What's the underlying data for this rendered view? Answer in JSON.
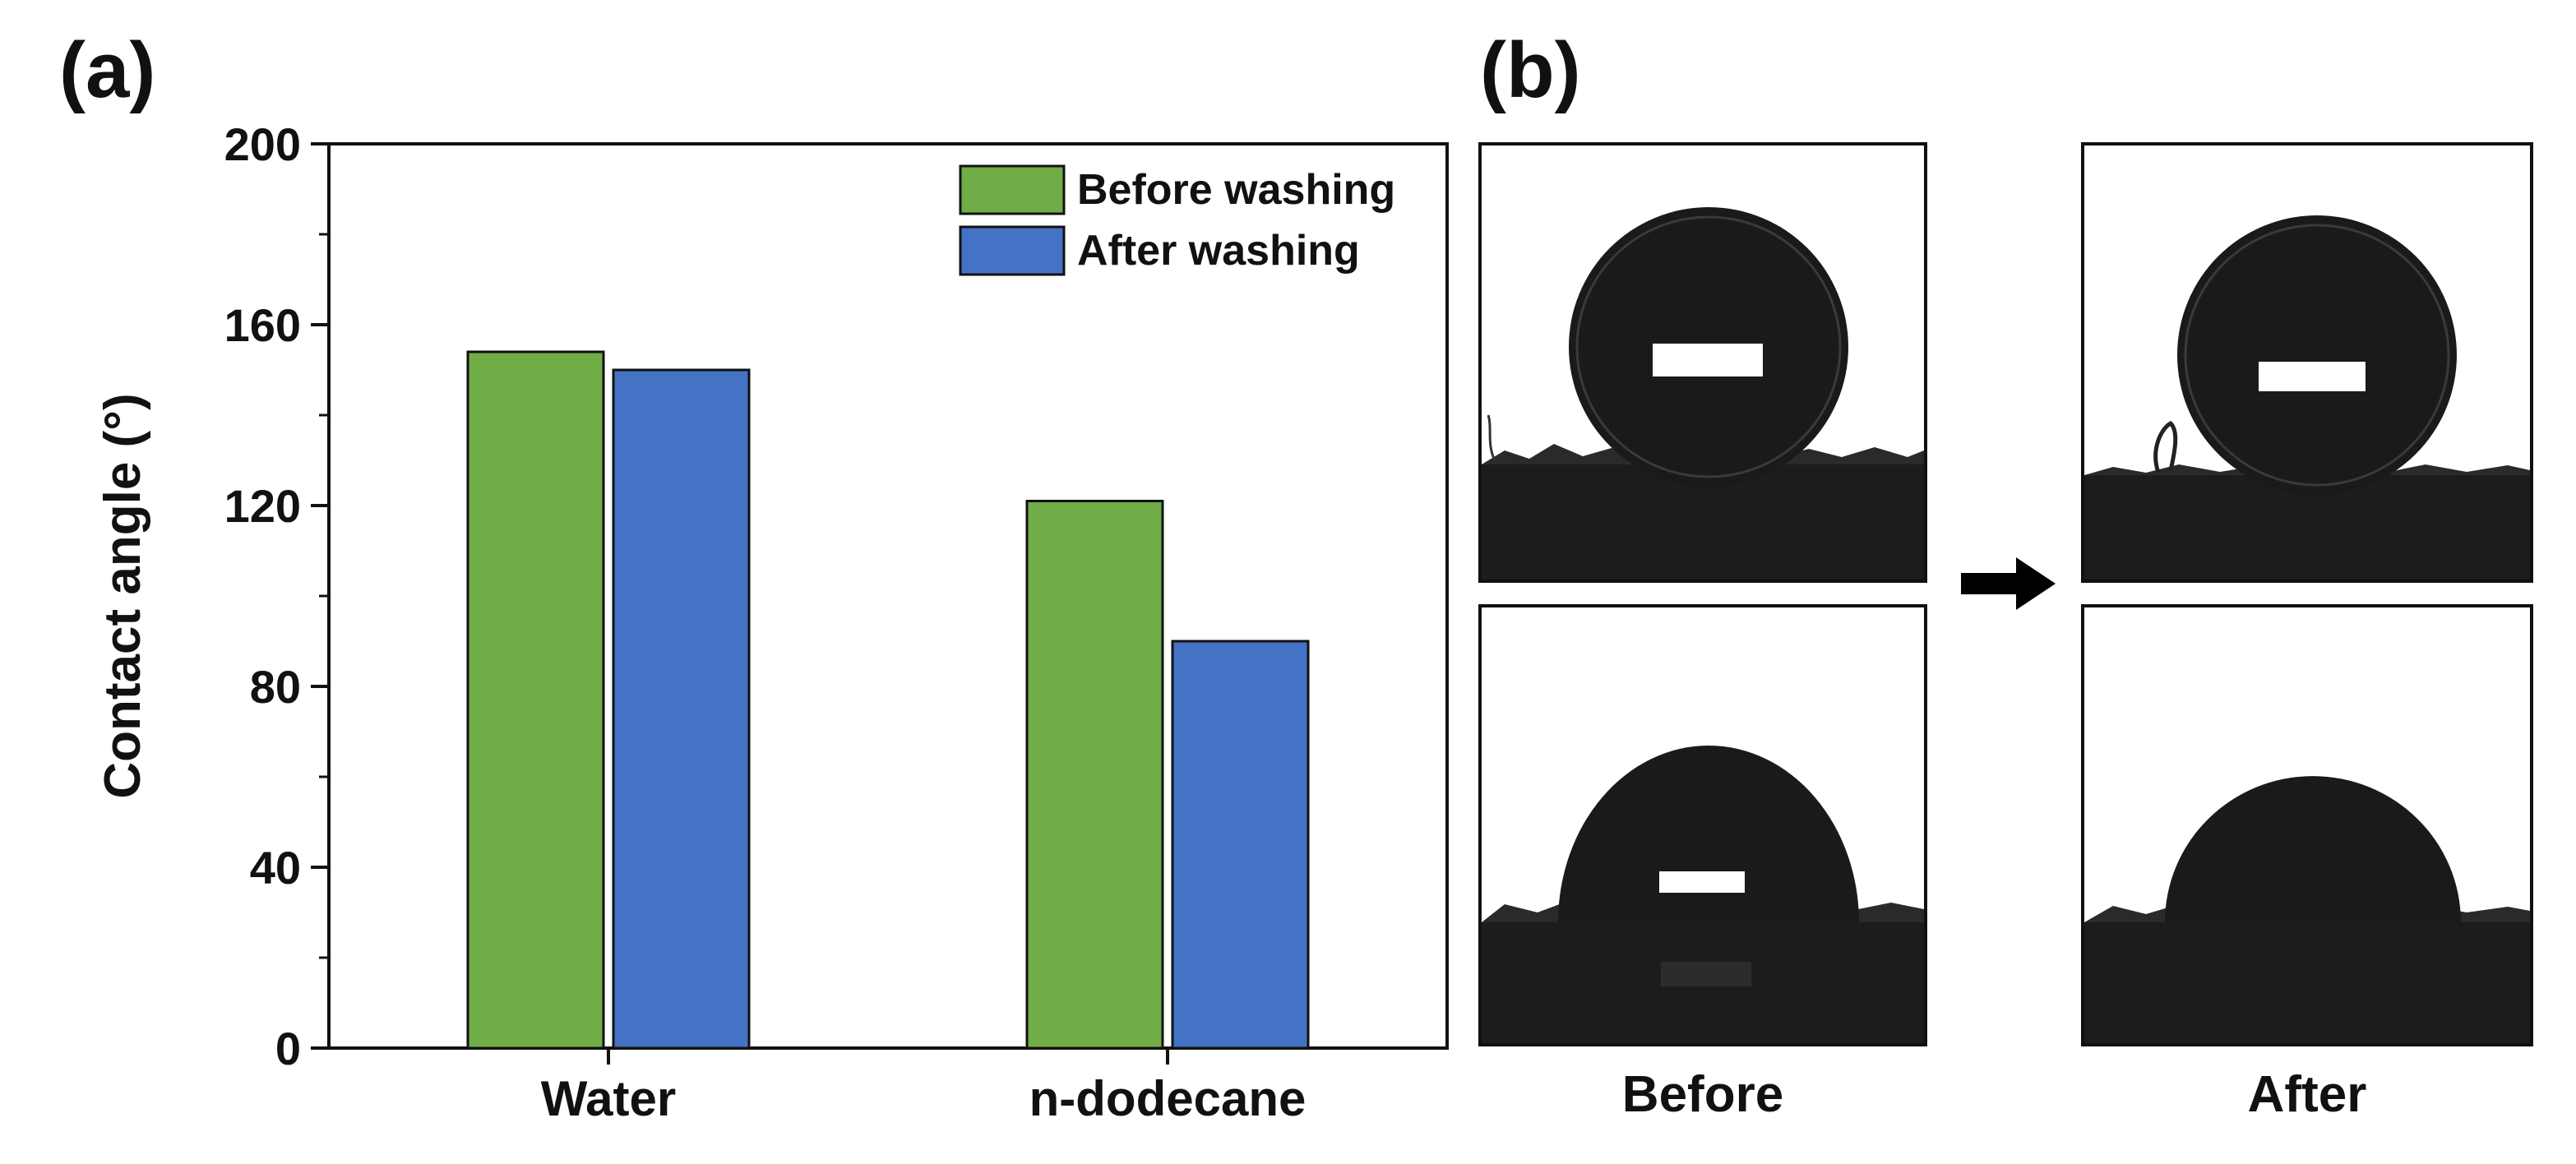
{
  "panels": {
    "a_label": "(a)",
    "b_label": "(b)"
  },
  "chart_data": {
    "type": "bar",
    "categories": [
      "Water",
      "n-dodecane"
    ],
    "series": [
      {
        "name": "Before washing",
        "values": [
          154,
          121
        ],
        "color": "#70AD47"
      },
      {
        "name": "After washing",
        "values": [
          150,
          90
        ],
        "color": "#4472C4"
      }
    ],
    "xlabel": "",
    "ylabel": "Contact angle (°)",
    "ylim": [
      0,
      200
    ],
    "yticks": [
      0,
      40,
      80,
      120,
      160,
      200
    ],
    "grid": false,
    "legend_position": "top-right"
  },
  "photos": {
    "before_caption": "Before",
    "after_caption": "After",
    "arrow_icon": "right-arrow-icon",
    "background": "#ffffff",
    "droplet_color": "#1a1a1a",
    "substrate_color": "#1c1c1c"
  }
}
